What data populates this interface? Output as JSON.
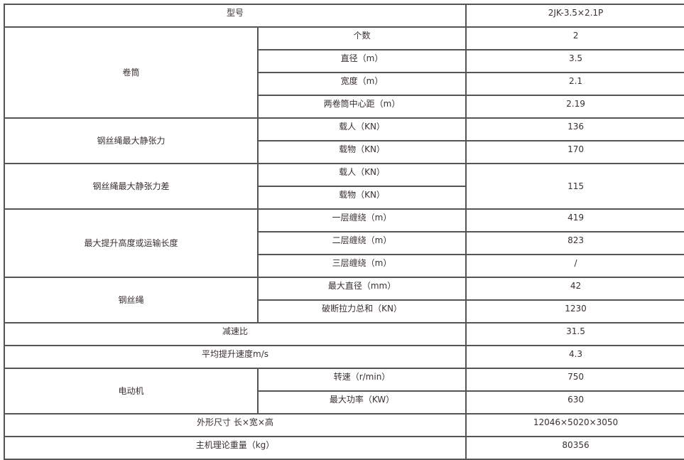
{
  "model": {
    "label": "型号",
    "value": "2JK-3.5×2.1P"
  },
  "drum": {
    "label": "卷筒",
    "rows": [
      {
        "label": "个数",
        "value": "2"
      },
      {
        "label": "直径（m）",
        "value": "3.5"
      },
      {
        "label": "宽度（m）",
        "value": "2.1"
      },
      {
        "label": "两卷筒中心距（m）",
        "value": "2.19"
      }
    ]
  },
  "max_static_tension": {
    "label": "钢丝绳最大静张力",
    "rows": [
      {
        "label": "载人（KN）",
        "value": "136"
      },
      {
        "label": "载物（KN）",
        "value": "170"
      }
    ]
  },
  "max_static_tension_diff": {
    "label": "钢丝绳最大静张力差",
    "rows": [
      {
        "label": "载人（KN）"
      },
      {
        "label": "载物（KN）"
      }
    ],
    "value": "115"
  },
  "max_lift": {
    "label": "最大提升高度或运输长度",
    "rows": [
      {
        "label": "一层缠绕（m）",
        "value": "419"
      },
      {
        "label": "二层缠绕（m）",
        "value": "823"
      },
      {
        "label": "三层缠绕（m）",
        "value": "/"
      }
    ]
  },
  "rope": {
    "label": "钢丝绳",
    "rows": [
      {
        "label": "最大直径（mm）",
        "value": "42"
      },
      {
        "label": "破断拉力总和（KN）",
        "value": "1230"
      }
    ]
  },
  "reduction_ratio": {
    "label": "减速比",
    "value": "31.5"
  },
  "avg_speed": {
    "label": "平均提升速度m/s",
    "value": "4.3"
  },
  "motor": {
    "label": "电动机",
    "rows": [
      {
        "label": "转速（r/min）",
        "value": "750"
      },
      {
        "label": "最大功率（KW）",
        "value": "630"
      }
    ]
  },
  "dimensions": {
    "label": "外形尺寸 长×宽×高",
    "value": "12046×5020×3050"
  },
  "weight": {
    "label": "主机理论重量（kg）",
    "value": "80356"
  }
}
